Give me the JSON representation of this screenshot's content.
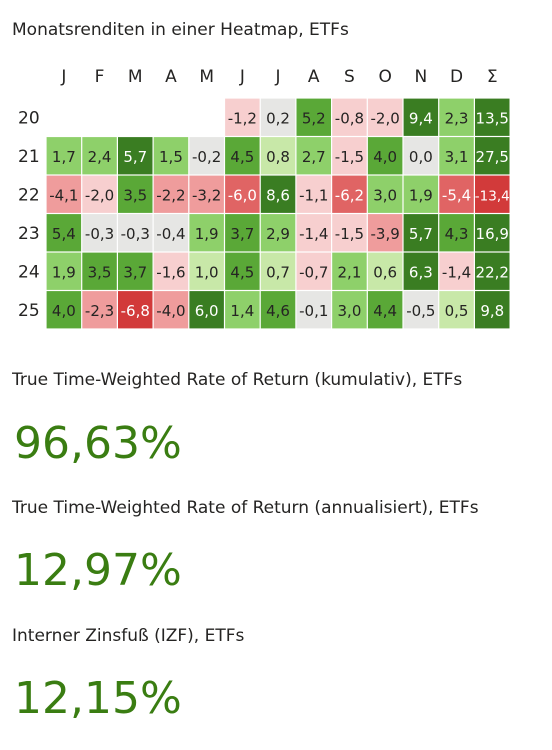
{
  "heatmap": {
    "title": "Monatsrenditen in einer Heatmap, ETFs"
  },
  "chart_data": {
    "type": "heatmap",
    "title": "Monatsrenditen in einer Heatmap, ETFs",
    "columns": [
      "J",
      "F",
      "M",
      "A",
      "M",
      "J",
      "J",
      "A",
      "S",
      "O",
      "N",
      "D",
      "Σ"
    ],
    "rows": [
      "20",
      "21",
      "22",
      "23",
      "24",
      "25"
    ],
    "value_labels": [
      [
        null,
        null,
        null,
        null,
        null,
        "-1,2",
        "0,2",
        "5,2",
        "-0,8",
        "-2,0",
        "9,4",
        "2,3",
        "13,5"
      ],
      [
        "1,7",
        "2,4",
        "5,7",
        "1,5",
        "-0,2",
        "4,5",
        "0,8",
        "2,7",
        "-1,5",
        "4,0",
        "0,0",
        "3,1",
        "27,5"
      ],
      [
        "-4,1",
        "-2,0",
        "3,5",
        "-2,2",
        "-3,2",
        "-6,0",
        "8,6",
        "-1,1",
        "-6,2",
        "3,0",
        "1,9",
        "-5,4",
        "-13,4"
      ],
      [
        "5,4",
        "-0,3",
        "-0,3",
        "-0,4",
        "1,9",
        "3,7",
        "2,9",
        "-1,4",
        "-1,5",
        "-3,9",
        "5,7",
        "4,3",
        "16,9"
      ],
      [
        "1,9",
        "3,5",
        "3,7",
        "-1,6",
        "1,0",
        "4,5",
        "0,7",
        "-0,7",
        "2,1",
        "0,6",
        "6,3",
        "-1,4",
        "22,2"
      ],
      [
        "4,0",
        "-2,3",
        "-6,8",
        "-4,0",
        "6,0",
        "1,4",
        "4,6",
        "-0,1",
        "3,0",
        "4,4",
        "-0,5",
        "0,5",
        "9,8"
      ]
    ],
    "colors": {
      "pos_light": "#c8e8a8",
      "pos_mid": "#8ed06a",
      "pos_strong": "#5aa837",
      "pos_dark": "#3a7d22",
      "neutral": "#e6e6e4",
      "neg_light": "#f7cfcf",
      "neg_mid": "#ef9c9c",
      "neg_strong": "#e06464",
      "neg_dark": "#d23a3a"
    }
  },
  "metrics": [
    {
      "label": "True Time-Weighted Rate of Return (kumulativ), ETFs",
      "value": "96,63%"
    },
    {
      "label": "True Time-Weighted Rate of Return (annualisiert), ETFs",
      "value": "12,97%"
    },
    {
      "label": "Interner Zinsfuß (IZF), ETFs",
      "value": "12,15%"
    }
  ],
  "value_color": "#3a7d12"
}
